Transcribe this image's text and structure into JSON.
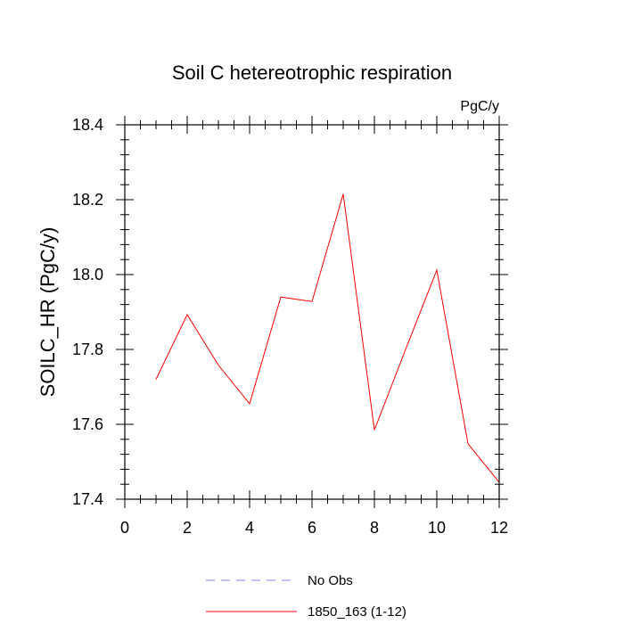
{
  "chart_data": {
    "type": "line",
    "title": "Soil C hetereotrophic respiration",
    "units_label": "PgC/y",
    "ylabel": "SOILC_HR  (PgC/y)",
    "xlabel": "",
    "xlim": [
      0,
      12
    ],
    "ylim": [
      17.4,
      18.4
    ],
    "x_ticks": [
      0,
      2,
      4,
      6,
      8,
      10,
      12
    ],
    "x_tick_labels": [
      "0",
      "2",
      "4",
      "6",
      "8",
      "10",
      "12"
    ],
    "y_ticks": [
      17.4,
      17.6,
      17.8,
      18.0,
      18.2,
      18.4
    ],
    "y_tick_labels": [
      "17.4",
      "17.6",
      "17.8",
      "18.0",
      "18.2",
      "18.4"
    ],
    "grid": false,
    "legend_position": "bottom",
    "series": [
      {
        "name": "1850_163 (1-12)",
        "color": "#ff0000",
        "style": "solid",
        "x": [
          1,
          2,
          3,
          4,
          5,
          6,
          7,
          8,
          9,
          10,
          11,
          12
        ],
        "y": [
          17.72,
          17.893,
          17.758,
          17.655,
          17.94,
          17.928,
          18.215,
          17.585,
          17.8,
          18.012,
          17.548,
          17.445
        ]
      }
    ],
    "legend": [
      {
        "label": "No Obs",
        "color": "#8080ff",
        "style": "dashed"
      },
      {
        "label": "1850_163 (1-12)",
        "color": "#ff0000",
        "style": "solid"
      }
    ]
  }
}
